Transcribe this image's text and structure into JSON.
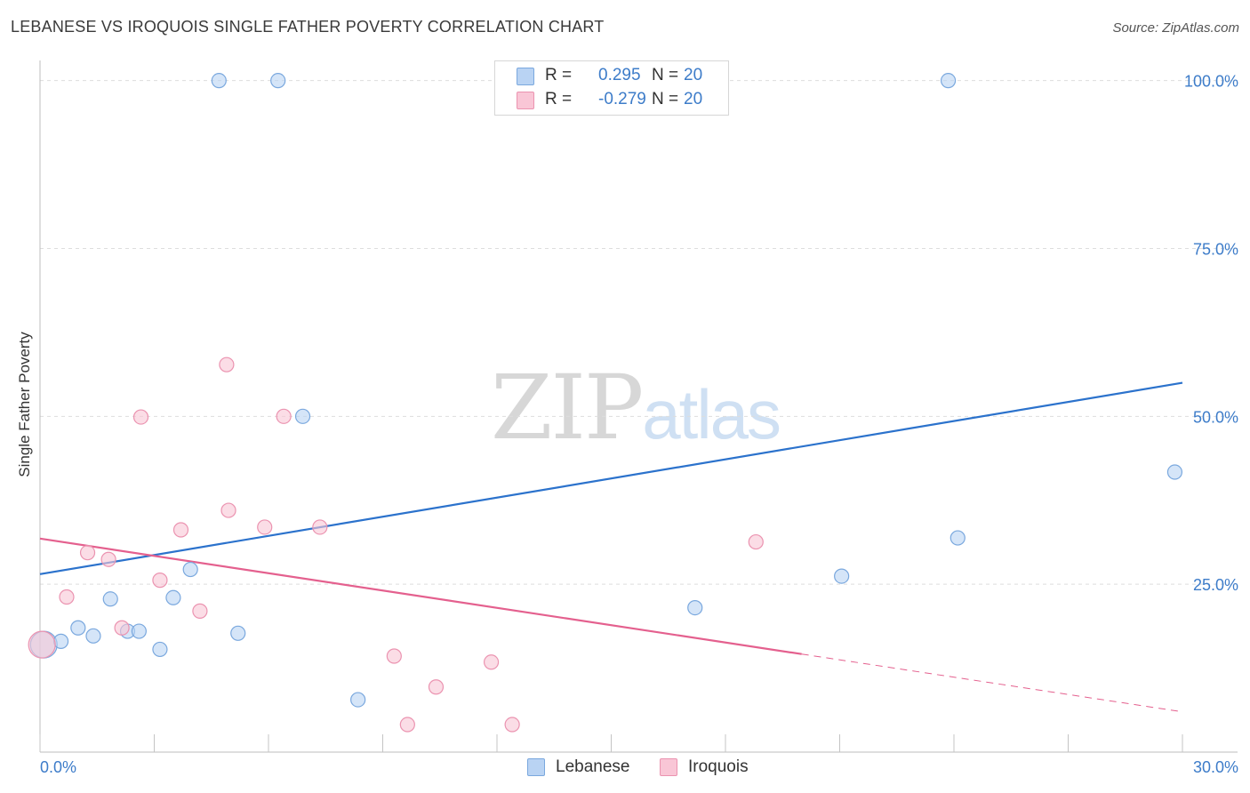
{
  "header": {
    "title": "LEBANESE VS IROQUOIS SINGLE FATHER POVERTY CORRELATION CHART",
    "source": "Source: ZipAtlas.com"
  },
  "watermark": {
    "zip": "ZIP",
    "atlas": "atlas"
  },
  "legend": {
    "lebanese": {
      "r_label": "R =",
      "r_value": "0.295",
      "n_label": "N =",
      "n_value": "20"
    },
    "iroquois": {
      "r_label": "R =",
      "r_value": "-0.279",
      "n_label": "N =",
      "n_value": "20"
    }
  },
  "bottom_legend": {
    "lebanese": "Lebanese",
    "iroquois": "Iroquois"
  },
  "colors": {
    "lebanese_fill": "#b9d3f3",
    "lebanese_stroke": "#7aa8de",
    "lebanese_line": "#2b72cc",
    "iroquois_fill": "#f9c6d6",
    "iroquois_stroke": "#eb93b0",
    "iroquois_line": "#e4608e",
    "grid": "#dddddd",
    "axis_text": "#3d7cc9"
  },
  "chart_data": {
    "type": "scatter",
    "title": "LEBANESE VS IROQUOIS SINGLE FATHER POVERTY CORRELATION CHART",
    "xlabel": "",
    "ylabel": "Single Father Poverty",
    "xlim": [
      0,
      30
    ],
    "ylim": [
      0,
      103
    ],
    "x_tick_labels": {
      "left": "0.0%",
      "right": "30.0%"
    },
    "y_ticks": [
      {
        "value": 25,
        "label": "25.0%"
      },
      {
        "value": 50,
        "label": "50.0%"
      },
      {
        "value": 75,
        "label": "75.0%"
      },
      {
        "value": 100,
        "label": "100.0%"
      }
    ],
    "series": [
      {
        "name": "Lebanese",
        "r": 0.295,
        "n": 20,
        "points": [
          {
            "x": 0.1,
            "y": 16.0,
            "big": true
          },
          {
            "x": 0.55,
            "y": 16.5
          },
          {
            "x": 1.0,
            "y": 18.5
          },
          {
            "x": 1.4,
            "y": 17.3
          },
          {
            "x": 1.85,
            "y": 22.8
          },
          {
            "x": 2.3,
            "y": 18.0
          },
          {
            "x": 2.6,
            "y": 18.0
          },
          {
            "x": 3.15,
            "y": 15.3
          },
          {
            "x": 3.5,
            "y": 23.0
          },
          {
            "x": 3.95,
            "y": 27.2
          },
          {
            "x": 4.7,
            "y": 100.0
          },
          {
            "x": 5.2,
            "y": 17.7
          },
          {
            "x": 6.25,
            "y": 100.0
          },
          {
            "x": 6.9,
            "y": 50.0
          },
          {
            "x": 8.35,
            "y": 7.8
          },
          {
            "x": 17.2,
            "y": 21.5
          },
          {
            "x": 21.05,
            "y": 26.2
          },
          {
            "x": 23.85,
            "y": 100.0
          },
          {
            "x": 24.1,
            "y": 31.9
          },
          {
            "x": 29.8,
            "y": 41.7
          }
        ],
        "trend": {
          "x0": 0,
          "y0": 26.5,
          "x1": 30,
          "y1": 55.0,
          "solid_to": 30
        }
      },
      {
        "name": "Iroquois",
        "r": -0.279,
        "n": 20,
        "points": [
          {
            "x": 0.05,
            "y": 16.0,
            "big": true
          },
          {
            "x": 0.7,
            "y": 23.1
          },
          {
            "x": 1.25,
            "y": 29.7
          },
          {
            "x": 1.8,
            "y": 28.7
          },
          {
            "x": 2.15,
            "y": 18.5
          },
          {
            "x": 2.65,
            "y": 49.9
          },
          {
            "x": 3.15,
            "y": 25.6
          },
          {
            "x": 3.7,
            "y": 33.1
          },
          {
            "x": 4.2,
            "y": 21.0
          },
          {
            "x": 4.9,
            "y": 57.7
          },
          {
            "x": 4.95,
            "y": 36.0
          },
          {
            "x": 5.9,
            "y": 33.5
          },
          {
            "x": 6.4,
            "y": 50.0
          },
          {
            "x": 7.35,
            "y": 33.5
          },
          {
            "x": 9.3,
            "y": 14.3
          },
          {
            "x": 9.65,
            "y": 4.1
          },
          {
            "x": 10.4,
            "y": 9.7
          },
          {
            "x": 11.85,
            "y": 13.4
          },
          {
            "x": 12.4,
            "y": 4.1
          },
          {
            "x": 18.8,
            "y": 31.3
          }
        ],
        "trend": {
          "x0": 0,
          "y0": 31.8,
          "x1": 30,
          "y1": 6.0,
          "solid_to": 20
        }
      }
    ]
  }
}
